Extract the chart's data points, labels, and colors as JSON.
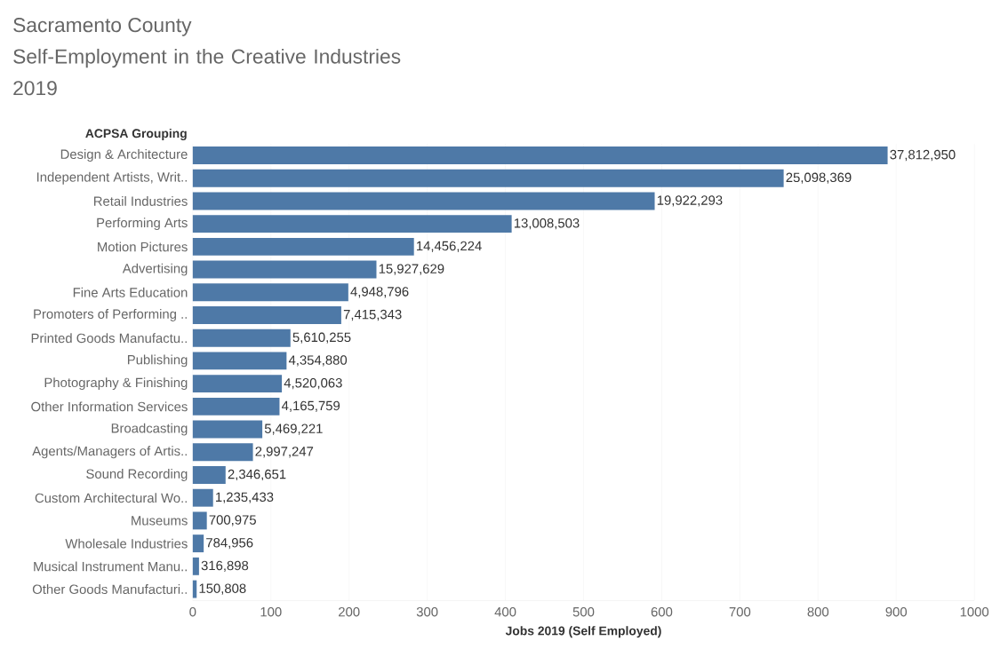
{
  "chart_data": {
    "type": "bar",
    "orientation": "horizontal",
    "title": "Sacramento County",
    "subtitle": "Self-Employment in the Creative Industries 2019",
    "ylabel": "ACPSA Grouping",
    "xlabel": "Jobs 2019 (Self Employed)",
    "categories": [
      "Design & Architecture",
      "Independent Artists, Writ..",
      "Retail Industries",
      "Performing Arts",
      "Motion Pictures",
      "Advertising",
      "Fine Arts Education",
      "Promoters of Performing ..",
      "Printed Goods Manufactu..",
      "Publishing",
      "Photography & Finishing",
      "Other Information Services",
      "Broadcasting",
      "Agents/Managers of Artis..",
      "Sound Recording",
      "Custom Architectural Wo..",
      "Museums",
      "Wholesale Industries",
      "Musical Instrument Manu..",
      "Other Goods Manufacturi.."
    ],
    "values": [
      889,
      756,
      591,
      408,
      283,
      235,
      199,
      190,
      125,
      120,
      114,
      111,
      89,
      77,
      42,
      26,
      18,
      14,
      8,
      5
    ],
    "annotations": [
      {
        "text": "37,812,950",
        "x": 889,
        "y": "Design & Architecture"
      },
      {
        "text": "25,098,369",
        "x": 756,
        "y": "Independent Artists, Writ.."
      },
      {
        "text": "19,922,293",
        "x": 591,
        "y": "Retail Industries"
      },
      {
        "text": "13,008,503",
        "x": 408,
        "y": "Performing Arts"
      },
      {
        "text": "14,456,224",
        "x": 283,
        "y": "Motion Pictures"
      },
      {
        "text": "15,927,629",
        "x": 235,
        "y": "Advertising"
      },
      {
        "text": "4,948,796",
        "x": 199,
        "y": "Fine Arts Education"
      },
      {
        "text": "7,415,343",
        "x": 190,
        "y": "Promoters of Performing .."
      },
      {
        "text": "5,610,255",
        "x": 125,
        "y": "Printed Goods Manufactu.."
      },
      {
        "text": "4,354,880",
        "x": 120,
        "y": "Publishing"
      },
      {
        "text": "4,520,063",
        "x": 114,
        "y": "Photography & Finishing"
      },
      {
        "text": "4,165,759",
        "x": 111,
        "y": "Other Information Services"
      },
      {
        "text": "5,469,221",
        "x": 89,
        "y": "Broadcasting"
      },
      {
        "text": "2,997,247",
        "x": 77,
        "y": "Agents/Managers of Artis.."
      },
      {
        "text": "2,346,651",
        "x": 42,
        "y": "Sound Recording"
      },
      {
        "text": "1,235,433",
        "x": 26,
        "y": "Custom Architectural Wo.."
      },
      {
        "text": "700,975",
        "x": 18,
        "y": "Museums"
      },
      {
        "text": "784,956",
        "x": 14,
        "y": "Wholesale Industries"
      },
      {
        "text": "316,898",
        "x": 8,
        "y": "Musical Instrument Manu.."
      },
      {
        "text": "150,808",
        "x": 5,
        "y": "Other Goods Manufacturi.."
      }
    ],
    "color": "#4e79a7",
    "xlim": [
      0,
      1000
    ],
    "xticks": [
      0,
      100,
      200,
      300,
      400,
      500,
      600,
      700,
      800,
      900,
      1000
    ],
    "grid": "x"
  }
}
